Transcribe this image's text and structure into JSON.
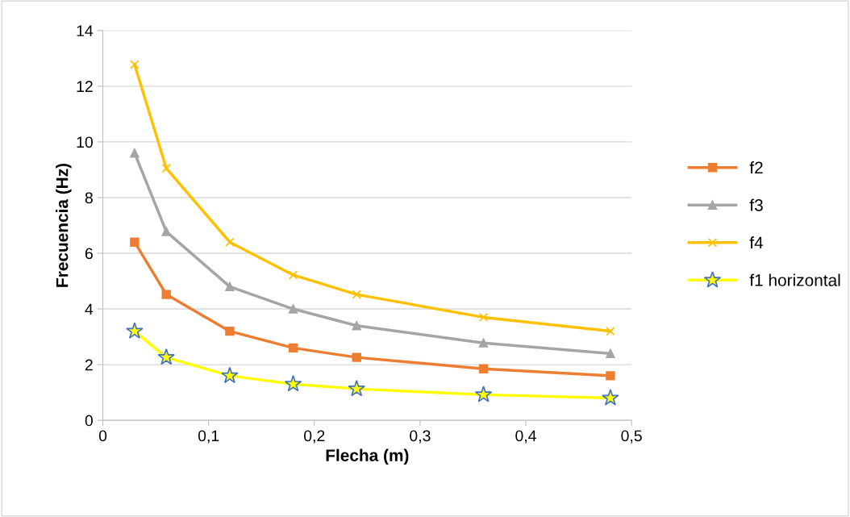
{
  "chart_data": {
    "type": "line",
    "xlabel": "Flecha (m)",
    "ylabel": "Frecuencia (Hz)",
    "x": [
      0.03,
      0.06,
      0.12,
      0.18,
      0.24,
      0.36,
      0.48
    ],
    "series": [
      {
        "name": "f2",
        "color": "#ed7d31",
        "marker": "square",
        "values": [
          6.4,
          4.52,
          3.2,
          2.6,
          2.26,
          1.85,
          1.6
        ]
      },
      {
        "name": "f3",
        "color": "#a5a5a5",
        "marker": "triangle",
        "values": [
          9.6,
          6.78,
          4.8,
          4.0,
          3.4,
          2.78,
          2.4
        ]
      },
      {
        "name": "f4",
        "color": "#ffc000",
        "marker": "cross",
        "values": [
          12.78,
          9.05,
          6.4,
          5.22,
          4.52,
          3.7,
          3.2
        ]
      },
      {
        "name": "f1 horizontal",
        "color": "#ffff00",
        "marker": "star",
        "values": [
          3.2,
          2.26,
          1.6,
          1.3,
          1.13,
          0.92,
          0.8
        ]
      }
    ],
    "xlim": [
      0,
      0.5
    ],
    "xticks": [
      0,
      {
        "value": 0.1,
        "label": "0,1"
      },
      {
        "value": 0.2,
        "label": "0,2"
      },
      {
        "value": 0.3,
        "label": "0,3"
      },
      {
        "value": 0.4,
        "label": "0,4"
      },
      {
        "value": 0.5,
        "label": "0,5"
      }
    ],
    "ylim": [
      0,
      14
    ],
    "yticks": [
      0,
      2,
      4,
      6,
      8,
      10,
      12,
      14
    ],
    "grid": "y",
    "legend": "right",
    "line_style": "solid"
  }
}
